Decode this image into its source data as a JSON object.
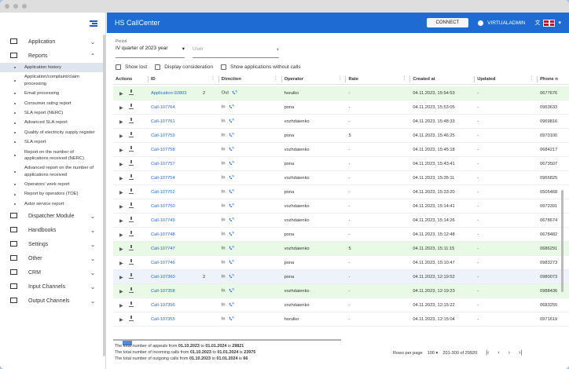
{
  "app": {
    "title": "HS CallCenter",
    "connect_label": "CONNECT",
    "username": "VIRTUALADMIN"
  },
  "sidebar": {
    "top_items": [
      {
        "icon": "monitor-icon",
        "label": "Application",
        "chevron": "⌄"
      },
      {
        "icon": "calendar-grid-icon",
        "label": "Reports",
        "chevron": "⌃"
      }
    ],
    "reports_subitems": [
      "Application history",
      "Application/complaint/claim processing",
      "Email processing",
      "Consumer rating report",
      "SLA report (NERC)",
      "Advanced SLA report",
      "Quality of electricity supply register",
      "SLA report",
      "Report on the number of applications received (NERC)",
      "Advanced report on the number of applications received",
      "Operators' work report",
      "Report by operators (TOE)",
      "Astor service report"
    ],
    "bottom_items": [
      {
        "icon": "dispatcher-icon",
        "label": "Dispatcher Module",
        "chevron": "⌄"
      },
      {
        "icon": "book-icon",
        "label": "Handbooks",
        "chevron": "⌄"
      },
      {
        "icon": "settings-icon",
        "label": "Settings",
        "chevron": "⌄"
      },
      {
        "icon": "other-icon",
        "label": "Other",
        "chevron": "⌄"
      },
      {
        "icon": "crm-icon",
        "label": "CRM",
        "chevron": "⌄"
      },
      {
        "icon": "incoming-call-icon",
        "label": "Input Channels",
        "chevron": "⌄"
      },
      {
        "icon": "outgoing-call-icon",
        "label": "Output Channels",
        "chevron": "⌄"
      }
    ]
  },
  "filters": {
    "period_caption": "Period",
    "period_value": "IV quarter of 2023 year",
    "user_placeholder": "User",
    "checks": [
      "Show lost",
      "Display consideration",
      "Show applications without calls"
    ]
  },
  "table": {
    "columns": [
      "Actions",
      "ID",
      "Direction",
      "Operator",
      "Rate",
      "Created at",
      "Updated",
      "Phone n"
    ],
    "rows": [
      {
        "id": "Application-92803",
        "count": "2",
        "dir": "Out",
        "op": "horulko",
        "rate": "-",
        "created": "04.11.2023, 15:54:53",
        "updated": "-",
        "phone": "0677676",
        "hl": "green"
      },
      {
        "id": "Call-107764",
        "count": "",
        "dir": "In",
        "op": "pona",
        "rate": "-",
        "created": "04.11.2023, 15:53:05",
        "updated": "-",
        "phone": "0963633",
        "hl": ""
      },
      {
        "id": "Call-107761",
        "count": "",
        "dir": "In",
        "op": "vozhdaienko",
        "rate": "-",
        "created": "04.11.2023, 15:48:33",
        "updated": "-",
        "phone": "0969816",
        "hl": ""
      },
      {
        "id": "Call-107759",
        "count": "",
        "dir": "In",
        "op": "pona",
        "rate": "5",
        "created": "04.11.2023, 15:46:25",
        "updated": "-",
        "phone": "0970100",
        "hl": ""
      },
      {
        "id": "Call-107758",
        "count": "",
        "dir": "In",
        "op": "vozhdaienko",
        "rate": "-",
        "created": "04.11.2023, 15:45:18",
        "updated": "-",
        "phone": "0684217",
        "hl": ""
      },
      {
        "id": "Call-107757",
        "count": "",
        "dir": "In",
        "op": "pona",
        "rate": "-",
        "created": "04.11.2023, 15:43:41",
        "updated": "-",
        "phone": "0673507",
        "hl": ""
      },
      {
        "id": "Call-107754",
        "count": "",
        "dir": "In",
        "op": "vozhdaienko",
        "rate": "-",
        "created": "04.11.2023, 15:35:11",
        "updated": "-",
        "phone": "0966825",
        "hl": ""
      },
      {
        "id": "Call-107752",
        "count": "",
        "dir": "In",
        "op": "pona",
        "rate": "-",
        "created": "04.11.2023, 15:33:20",
        "updated": "-",
        "phone": "0505468",
        "hl": ""
      },
      {
        "id": "Call-107750",
        "count": "",
        "dir": "In",
        "op": "vozhdaienko",
        "rate": "-",
        "created": "04.11.2023, 15:14:41",
        "updated": "-",
        "phone": "0972391",
        "hl": ""
      },
      {
        "id": "Call-107749",
        "count": "",
        "dir": "In",
        "op": "vozhdaienko",
        "rate": "-",
        "created": "04.11.2023, 15:14:26",
        "updated": "-",
        "phone": "0678674",
        "hl": ""
      },
      {
        "id": "Call-107748",
        "count": "",
        "dir": "In",
        "op": "pona",
        "rate": "-",
        "created": "04.11.2023, 15:12:48",
        "updated": "-",
        "phone": "0678482",
        "hl": ""
      },
      {
        "id": "Call-107747",
        "count": "",
        "dir": "In",
        "op": "vozhdaienko",
        "rate": "5",
        "created": "04.11.2023, 15:11:15",
        "updated": "-",
        "phone": "0686291",
        "hl": "green"
      },
      {
        "id": "Call-107746",
        "count": "",
        "dir": "In",
        "op": "pona",
        "rate": "-",
        "created": "04.11.2023, 15:10:47",
        "updated": "-",
        "phone": "0983273",
        "hl": ""
      },
      {
        "id": "Call-107360",
        "count": "2",
        "dir": "In",
        "op": "pona",
        "rate": "-",
        "created": "04.11.2023, 12:19:52",
        "updated": "-",
        "phone": "0980073",
        "hl": "blue"
      },
      {
        "id": "Call-107358",
        "count": "",
        "dir": "In",
        "op": "vozhdaienko",
        "rate": "-",
        "created": "04.11.2023, 12:19:23",
        "updated": "-",
        "phone": "0988436",
        "hl": "green"
      },
      {
        "id": "Call-107356",
        "count": "",
        "dir": "In",
        "op": "vozhdaienko",
        "rate": "-",
        "created": "04.11.2023, 12:15:22",
        "updated": "-",
        "phone": "0683255",
        "hl": ""
      },
      {
        "id": "Call-107355",
        "count": "",
        "dir": "In",
        "op": "horulko",
        "rate": "-",
        "created": "04.11.2023, 12:15:04",
        "updated": "-",
        "phone": "0971619",
        "hl": ""
      }
    ]
  },
  "footer": {
    "line1_prefix": "The total number of appeals from",
    "line1_from": "01.10.2023",
    "line1_to_word": "to",
    "line1_to": "01.01.2024",
    "line1_is": "is",
    "line1_total": "29821",
    "line2_prefix": "The total number of incoming calls from",
    "line2_from": "01.10.2023",
    "line2_to_word": "to",
    "line2_to": "01.01.2024",
    "line2_is": "is",
    "line2_total": "23975",
    "line3_prefix": "The total number of outgoing calls from",
    "line3_from": "01.10.2023",
    "line3_to_word": "to",
    "line3_to": "01.01.2024",
    "line3_is": "is",
    "line3_total": "66"
  },
  "pager": {
    "rows_label": "Rows per page",
    "rows_value": "100",
    "range": "201-300 of 29920",
    "first": "|‹",
    "prev": "‹",
    "next": "›",
    "last": "›|"
  }
}
